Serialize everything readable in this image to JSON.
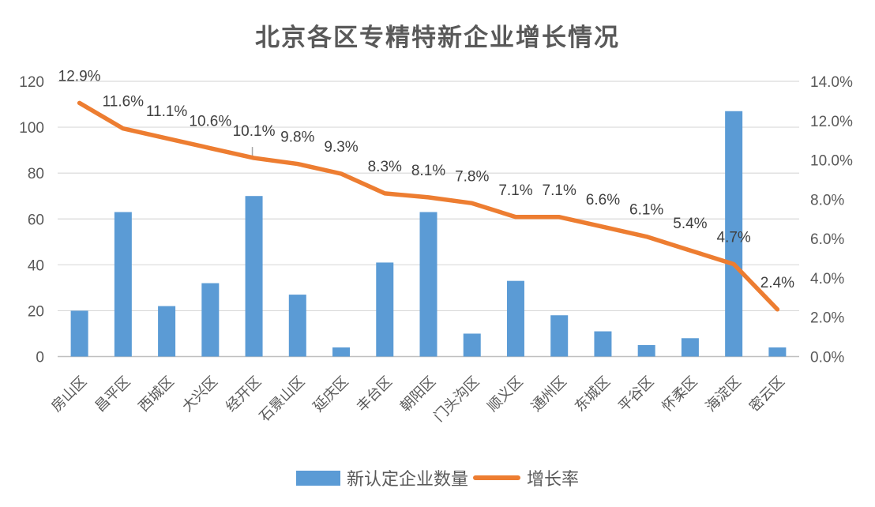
{
  "title": "北京各区专精特新企业增长情况",
  "legend": {
    "bar_label": "新认定企业数量",
    "line_label": "增长率"
  },
  "colors": {
    "bar": "#5B9BD5",
    "line": "#ED7D31",
    "grid": "#D9D9D9",
    "axis_line": "#BFBFBF",
    "tick_text": "#595959",
    "data_label": "#404040",
    "title_text": "#595959",
    "leader_line": "#A6A6A6"
  },
  "chart_data": {
    "type": "bar",
    "combo": "bar + line (dual axis)",
    "title": "北京各区专精特新企业增长情况",
    "categories": [
      "房山区",
      "昌平区",
      "西城区",
      "大兴区",
      "经开区",
      "石景山区",
      "延庆区",
      "丰台区",
      "朝阳区",
      "门头沟区",
      "顺义区",
      "通州区",
      "东城区",
      "平谷区",
      "怀柔区",
      "海淀区",
      "密云区"
    ],
    "series": [
      {
        "name": "新认定企业数量",
        "type": "bar",
        "axis": "left",
        "values": [
          20,
          63,
          22,
          32,
          70,
          27,
          4,
          41,
          63,
          10,
          33,
          18,
          11,
          5,
          8,
          107,
          4
        ]
      },
      {
        "name": "增长率",
        "type": "line",
        "axis": "right",
        "values": [
          12.9,
          11.6,
          11.1,
          10.6,
          10.1,
          9.8,
          9.3,
          8.3,
          8.1,
          7.8,
          7.1,
          7.1,
          6.6,
          6.1,
          5.4,
          4.7,
          2.4
        ],
        "labels": [
          "12.9%",
          "11.6%",
          "11.1%",
          "10.6%",
          "10.1%",
          "9.8%",
          "9.3%",
          "8.3%",
          "8.1%",
          "7.8%",
          "7.1%",
          "7.1%",
          "6.6%",
          "6.1%",
          "5.4%",
          "4.7%",
          "2.4%"
        ]
      }
    ],
    "left_axis": {
      "min": 0,
      "max": 120,
      "tick_step": 20,
      "ticks": [
        "0",
        "20",
        "40",
        "60",
        "80",
        "100",
        "120"
      ]
    },
    "right_axis": {
      "min": 0,
      "max": 14,
      "tick_step": 2,
      "ticks": [
        "0.0%",
        "2.0%",
        "4.0%",
        "6.0%",
        "8.0%",
        "10.0%",
        "12.0%",
        "14.0%"
      ]
    },
    "grid": true,
    "legend_position": "bottom",
    "data_label_leader_index": 4
  }
}
